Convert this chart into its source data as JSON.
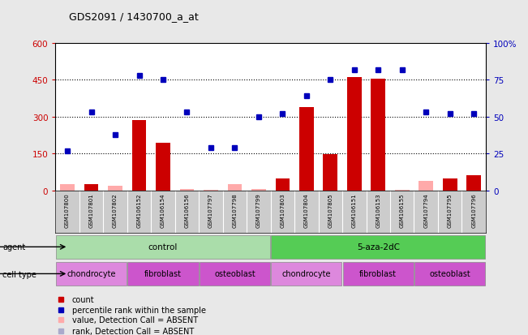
{
  "title": "GDS2091 / 1430700_a_at",
  "samples": [
    "GSM107800",
    "GSM107801",
    "GSM107802",
    "GSM106152",
    "GSM106154",
    "GSM106156",
    "GSM107797",
    "GSM107798",
    "GSM107799",
    "GSM107803",
    "GSM107804",
    "GSM107805",
    "GSM106151",
    "GSM106153",
    "GSM106155",
    "GSM107794",
    "GSM107795",
    "GSM107796"
  ],
  "count_values": [
    25,
    25,
    20,
    285,
    195,
    8,
    4,
    25,
    8,
    50,
    340,
    148,
    460,
    455,
    4,
    40,
    50,
    62
  ],
  "count_absent": [
    true,
    false,
    true,
    false,
    false,
    true,
    true,
    true,
    true,
    false,
    false,
    false,
    false,
    false,
    true,
    true,
    false,
    false
  ],
  "percentile_values_pct": [
    27,
    53,
    38,
    78,
    75,
    53,
    29,
    29,
    50,
    52,
    64,
    75,
    82,
    82,
    82,
    53,
    52,
    52
  ],
  "percentile_absent": [
    false,
    false,
    false,
    false,
    false,
    false,
    false,
    false,
    false,
    false,
    false,
    false,
    false,
    false,
    false,
    false,
    false,
    false
  ],
  "agent_groups": [
    {
      "label": "control",
      "start": 0,
      "end": 9,
      "color": "#aaddaa"
    },
    {
      "label": "5-aza-2dC",
      "start": 9,
      "end": 18,
      "color": "#55cc55"
    }
  ],
  "cell_type_groups": [
    {
      "label": "chondrocyte",
      "start": 0,
      "end": 3,
      "color": "#dd88dd"
    },
    {
      "label": "fibroblast",
      "start": 3,
      "end": 6,
      "color": "#cc55cc"
    },
    {
      "label": "osteoblast",
      "start": 6,
      "end": 9,
      "color": "#cc55cc"
    },
    {
      "label": "chondrocyte",
      "start": 9,
      "end": 12,
      "color": "#dd88dd"
    },
    {
      "label": "fibroblast",
      "start": 12,
      "end": 15,
      "color": "#cc55cc"
    },
    {
      "label": "osteoblast",
      "start": 15,
      "end": 18,
      "color": "#cc55cc"
    }
  ],
  "ylim_left": [
    0,
    600
  ],
  "ylim_right": [
    0,
    100
  ],
  "yticks_left": [
    0,
    150,
    300,
    450,
    600
  ],
  "ytick_labels_left": [
    "0",
    "150",
    "300",
    "450",
    "600"
  ],
  "yticks_right": [
    0,
    25,
    50,
    75,
    100
  ],
  "ytick_labels_right": [
    "0",
    "25",
    "50",
    "75",
    "100%"
  ],
  "bar_color": "#cc0000",
  "bar_absent_color": "#ffaaaa",
  "scatter_color": "#0000bb",
  "scatter_absent_color": "#aaaacc",
  "background_color": "#e8e8e8",
  "plot_bg": "#ffffff",
  "legend_items": [
    {
      "color": "#cc0000",
      "label": "count"
    },
    {
      "color": "#0000bb",
      "label": "percentile rank within the sample"
    },
    {
      "color": "#ffaaaa",
      "label": "value, Detection Call = ABSENT"
    },
    {
      "color": "#aaaacc",
      "label": "rank, Detection Call = ABSENT"
    }
  ]
}
